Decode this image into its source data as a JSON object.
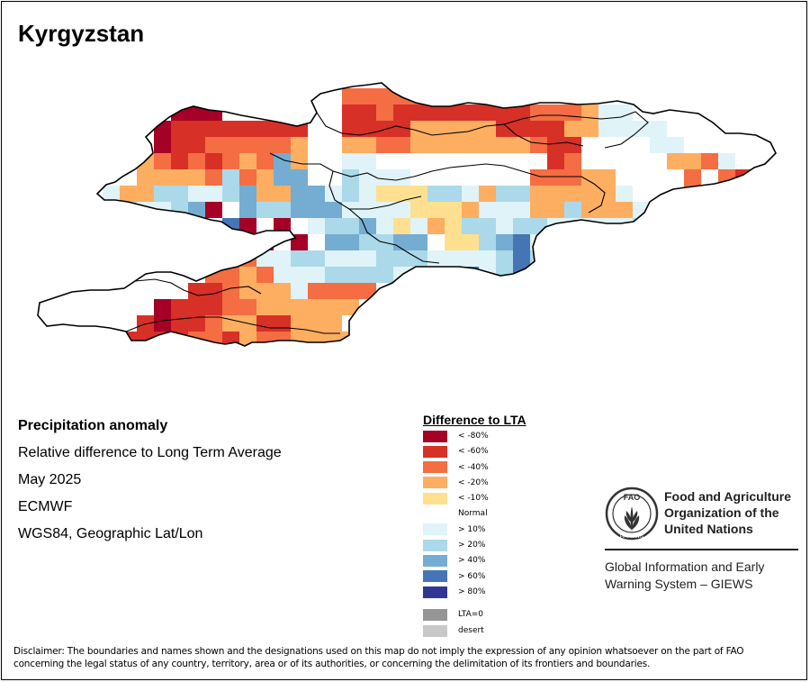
{
  "title": "Kyrgyzstan",
  "info": {
    "heading": "Precipitation anomaly",
    "description": "Relative difference to Long Term Average",
    "period": "May 2025",
    "source": "ECMWF",
    "projection": "WGS84, Geographic Lat/Lon"
  },
  "legend": {
    "title": "Difference to LTA",
    "items": [
      {
        "label": "< -80%",
        "color": "#a50026"
      },
      {
        "label": "< -60%",
        "color": "#d73027"
      },
      {
        "label": "< -40%",
        "color": "#f46d43"
      },
      {
        "label": "< -20%",
        "color": "#fdae61"
      },
      {
        "label": "< -10%",
        "color": "#fee090"
      },
      {
        "label": "Normal",
        "color": null
      },
      {
        "label": "> 10%",
        "color": "#e0f3f8"
      },
      {
        "label": "> 20%",
        "color": "#abd9e9"
      },
      {
        "label": "> 40%",
        "color": "#74add1"
      },
      {
        "label": "> 60%",
        "color": "#4575b4"
      },
      {
        "label": "> 80%",
        "color": "#313695"
      }
    ],
    "extra": [
      {
        "label": "LTA=0",
        "color": "#969696"
      },
      {
        "label": "desert",
        "color": "#c8c8c8"
      }
    ]
  },
  "org": {
    "logo_text": "FAO",
    "logo_motto": "FIAT PANIS",
    "name": "Food and Agriculture\nOrganization of the\nUnited Nations",
    "system": "Global Information and Early\nWarning System – GIEWS"
  },
  "disclaimer": "Disclaimer: The boundaries and names shown and the designations used on this map do not imply the expression of any opinion whatsoever on the part of FAO concerning the legal status of any country, territory, area or of its authorities, or concerning the delimitation of its frontiers and boundaries."
}
